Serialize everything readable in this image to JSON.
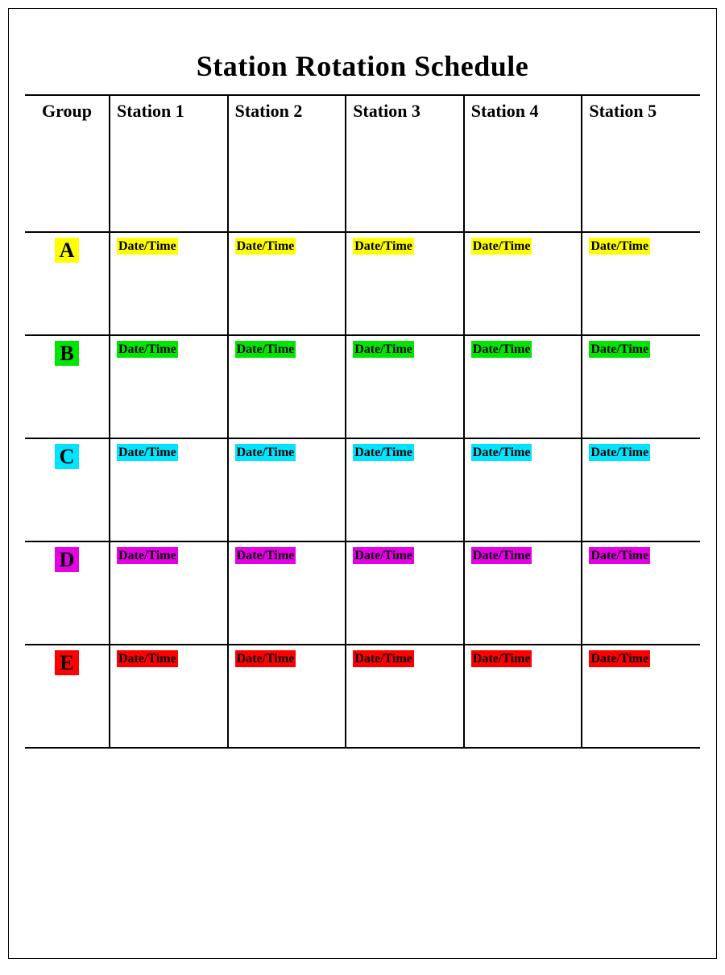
{
  "title": "Station Rotation Schedule",
  "columns": [
    "Group",
    "Station 1",
    "Station 2",
    "Station 3",
    "Station 4",
    "Station 5"
  ],
  "cell_label": "Date/Time",
  "rows": [
    {
      "group": "A",
      "highlight": "#ffff00"
    },
    {
      "group": "B",
      "highlight": "#00e600"
    },
    {
      "group": "C",
      "highlight": "#00e5ff"
    },
    {
      "group": "D",
      "highlight": "#e600e6"
    },
    {
      "group": "E",
      "highlight": "#ff0000"
    }
  ],
  "style": {
    "page_bg": "#ffffff",
    "text_color": "#000000",
    "border_color": "#000000",
    "title_fontsize": 36,
    "header_fontsize": 22,
    "group_fontsize": 26,
    "cell_label_fontsize": 16,
    "header_row_height": 170,
    "body_row_height": 128,
    "group_col_width": 105,
    "border_width": 2,
    "font_family_heading": "Cooper Black",
    "font_family_body": "Georgia"
  }
}
